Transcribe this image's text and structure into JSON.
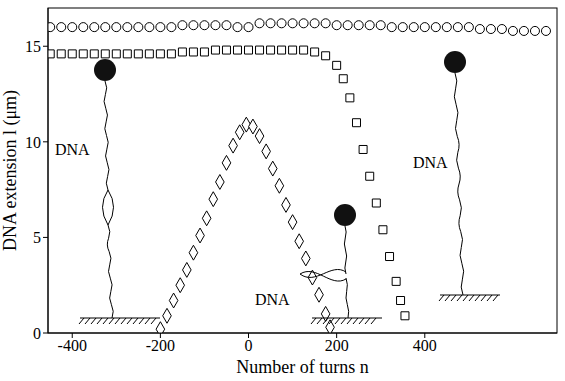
{
  "chart_data": {
    "type": "scatter",
    "x_label": "Number of turns n",
    "y_label": "DNA extension l (μm)",
    "xlim": [
      -455,
      700
    ],
    "ylim": [
      0,
      17
    ],
    "xticks": [
      -400,
      -200,
      0,
      200,
      400
    ],
    "yticks": [
      0,
      5,
      10,
      15
    ],
    "grid": false,
    "tick_labels": true,
    "annotations": [
      "DNA",
      "DNA",
      "DNA"
    ],
    "series": [
      {
        "color": "#000000",
        "marker": "circle",
        "x": [
          -450,
          -425,
          -400,
          -375,
          -350,
          -325,
          -300,
          -275,
          -250,
          -225,
          -200,
          -175,
          -150,
          -125,
          -100,
          -75,
          -50,
          -25,
          0,
          25,
          50,
          75,
          100,
          125,
          150,
          175,
          200,
          225,
          250,
          275,
          300,
          325,
          350,
          375,
          400,
          425,
          450,
          475,
          500,
          525,
          550,
          575,
          600,
          625,
          650,
          675
        ],
        "values": [
          16.0,
          16.0,
          16.0,
          16.0,
          16.0,
          16.0,
          16.0,
          16.0,
          16.0,
          16.0,
          16.0,
          16.0,
          16.1,
          16.1,
          16.1,
          16.1,
          16.1,
          16.0,
          16.0,
          16.2,
          16.2,
          16.2,
          16.2,
          16.2,
          16.2,
          16.2,
          16.1,
          16.1,
          16.1,
          16.1,
          16.1,
          16.0,
          16.0,
          16.0,
          16.0,
          16.0,
          16.0,
          16.0,
          16.0,
          15.9,
          15.9,
          15.9,
          15.8,
          15.8,
          15.8,
          15.8
        ]
      },
      {
        "color": "#000000",
        "marker": "square",
        "x": [
          -450,
          -425,
          -400,
          -375,
          -350,
          -325,
          -300,
          -275,
          -250,
          -225,
          -200,
          -175,
          -150,
          -125,
          -100,
          -75,
          -50,
          -25,
          0,
          25,
          50,
          75,
          100,
          125,
          150,
          175,
          200,
          215,
          230,
          245,
          260,
          275,
          290,
          305,
          320,
          335,
          345,
          355
        ],
        "values": [
          14.6,
          14.6,
          14.6,
          14.6,
          14.6,
          14.6,
          14.6,
          14.6,
          14.6,
          14.6,
          14.6,
          14.6,
          14.7,
          14.7,
          14.7,
          14.8,
          14.8,
          14.8,
          14.8,
          14.8,
          14.8,
          14.8,
          14.8,
          14.8,
          14.7,
          14.5,
          14.0,
          13.3,
          12.3,
          11.0,
          9.6,
          8.2,
          6.8,
          5.4,
          4.0,
          2.7,
          1.7,
          0.9
        ]
      },
      {
        "color": "#000000",
        "marker": "diamond",
        "x": [
          -200,
          -185,
          -170,
          -155,
          -140,
          -125,
          -110,
          -95,
          -80,
          -65,
          -50,
          -35,
          -20,
          -5,
          10,
          25,
          40,
          55,
          70,
          85,
          100,
          115,
          130,
          145,
          160,
          175,
          185
        ],
        "values": [
          0.2,
          0.9,
          1.7,
          2.5,
          3.3,
          4.2,
          5.1,
          6.0,
          7.0,
          7.9,
          8.9,
          9.8,
          10.5,
          10.9,
          10.8,
          10.3,
          9.5,
          8.6,
          7.7,
          6.7,
          5.8,
          4.8,
          3.9,
          2.9,
          2.0,
          1.0,
          0.3
        ]
      }
    ]
  }
}
